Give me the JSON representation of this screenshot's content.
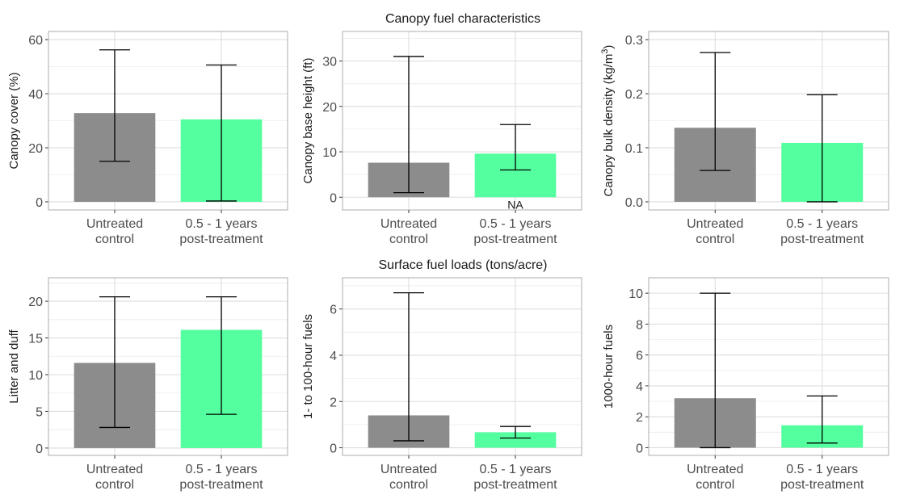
{
  "figure": {
    "row_titles": [
      "Canopy fuel characteristics",
      "Surface fuel loads (tons/acre)"
    ]
  },
  "colors": {
    "control": "#8c8c8c",
    "treated": "#54ff9f",
    "errorbar": "#000000",
    "grid": "#dedede",
    "panel_border": "#b3b3b3"
  },
  "chart_data": [
    {
      "type": "bar",
      "row": 0,
      "col": 0,
      "title": "",
      "ylabel": "Canopy cover (%)",
      "ylabel_sup": "",
      "categories": [
        "Untreated\ncontrol",
        "0.5 - 1 years\npost-treatment"
      ],
      "values": [
        32.8,
        30.5
      ],
      "error_low": [
        15,
        0.3
      ],
      "error_high": [
        56.2,
        50.6
      ],
      "ylim": [
        -3,
        63
      ],
      "yticks": [
        0,
        20,
        40,
        60
      ],
      "ytick_labels": [
        "0",
        "20",
        "40",
        "60"
      ],
      "annotations": [],
      "grid": true
    },
    {
      "type": "bar",
      "row": 0,
      "col": 1,
      "title": "Canopy fuel characteristics",
      "ylabel": "Canopy base height (ft)",
      "ylabel_sup": "",
      "categories": [
        "Untreated\ncontrol",
        "0.5 - 1 years\npost-treatment"
      ],
      "values": [
        7.6,
        9.6
      ],
      "error_low": [
        1,
        6
      ],
      "error_high": [
        31,
        16
      ],
      "ylim": [
        -2.8,
        36.5
      ],
      "yticks": [
        0,
        10,
        20,
        30
      ],
      "ytick_labels": [
        "0",
        "10",
        "20",
        "30"
      ],
      "annotations": [
        {
          "category_index": 1,
          "text": "NA"
        }
      ],
      "grid": true
    },
    {
      "type": "bar",
      "row": 0,
      "col": 2,
      "title": "",
      "ylabel": "Canopy bulk density (kg/m",
      "ylabel_sup": "3",
      "ylabel_suffix": ")",
      "categories": [
        "Untreated\ncontrol",
        "0.5 - 1 years\npost-treatment"
      ],
      "values": [
        0.137,
        0.109
      ],
      "error_low": [
        0.058,
        0.0
      ],
      "error_high": [
        0.276,
        0.198
      ],
      "ylim": [
        -0.015,
        0.315
      ],
      "yticks": [
        0.0,
        0.1,
        0.2,
        0.3
      ],
      "ytick_labels": [
        "0.0",
        "0.1",
        "0.2",
        "0.3"
      ],
      "annotations": [],
      "grid": true
    },
    {
      "type": "bar",
      "row": 1,
      "col": 0,
      "title": "",
      "ylabel": "Litter and duff",
      "ylabel_sup": "",
      "categories": [
        "Untreated\ncontrol",
        "0.5 - 1 years\npost-treatment"
      ],
      "values": [
        11.6,
        16.1
      ],
      "error_low": [
        2.8,
        4.6
      ],
      "error_high": [
        20.6,
        20.6
      ],
      "ylim": [
        -1.0,
        23.2
      ],
      "yticks": [
        0,
        5,
        10,
        15,
        20
      ],
      "ytick_labels": [
        "0",
        "5",
        "10",
        "15",
        "20"
      ],
      "annotations": [],
      "grid": true
    },
    {
      "type": "bar",
      "row": 1,
      "col": 1,
      "title": "Surface fuel loads (tons/acre)",
      "ylabel": "1- to 100-hour fuels",
      "ylabel_sup": "",
      "categories": [
        "Untreated\ncontrol",
        "0.5 - 1 years\npost-treatment"
      ],
      "values": [
        1.4,
        0.67
      ],
      "error_low": [
        0.3,
        0.42
      ],
      "error_high": [
        6.7,
        0.92
      ],
      "ylim": [
        -0.33,
        7.35
      ],
      "yticks": [
        0,
        2,
        4,
        6
      ],
      "ytick_labels": [
        "0",
        "2",
        "4",
        "6"
      ],
      "annotations": [],
      "grid": true
    },
    {
      "type": "bar",
      "row": 1,
      "col": 2,
      "title": "",
      "ylabel": "1000-hour fuels",
      "ylabel_sup": "",
      "categories": [
        "Untreated\ncontrol",
        "0.5 - 1 years\npost-treatment"
      ],
      "values": [
        3.2,
        1.45
      ],
      "error_low": [
        0.0,
        0.3
      ],
      "error_high": [
        10.0,
        3.35
      ],
      "ylim": [
        -0.5,
        11.0
      ],
      "yticks": [
        0,
        2,
        4,
        6,
        8,
        10
      ],
      "ytick_labels": [
        "0",
        "2",
        "4",
        "6",
        "8",
        "10"
      ],
      "annotations": [],
      "grid": true
    }
  ]
}
